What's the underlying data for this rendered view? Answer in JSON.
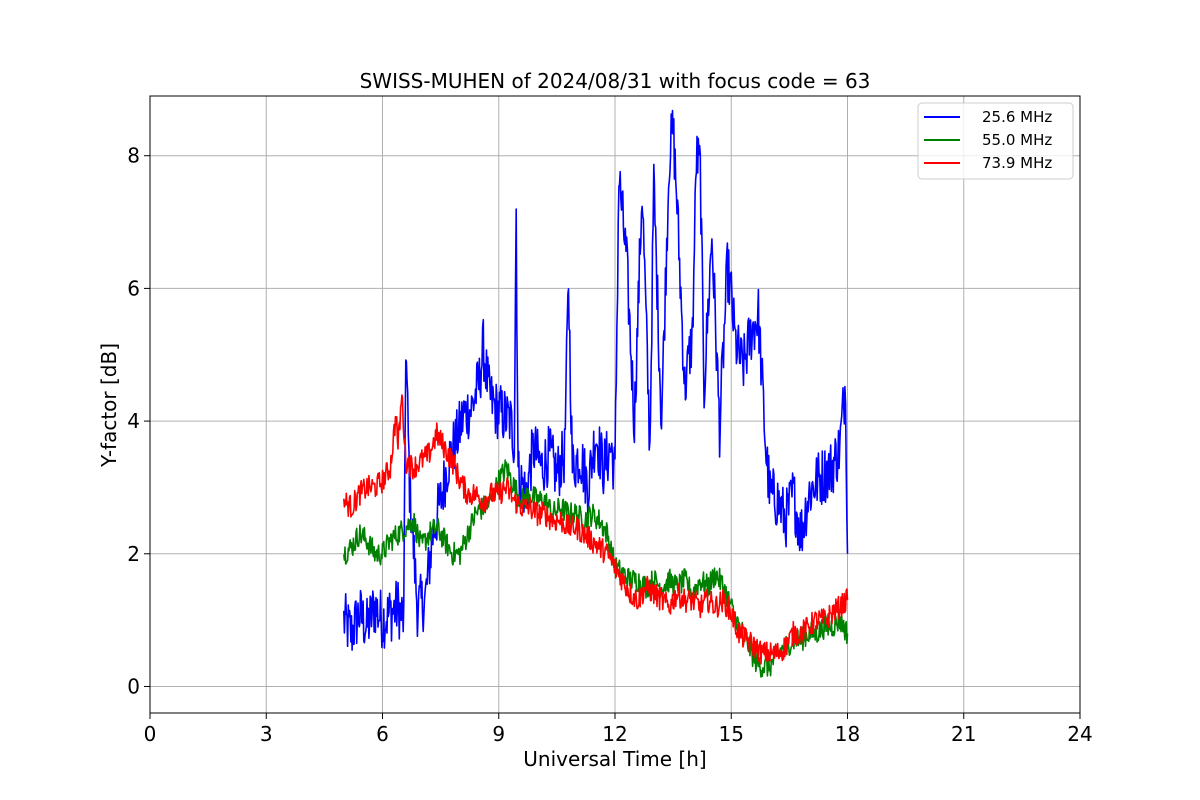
{
  "chart_data": {
    "type": "line",
    "title": "SWISS-MUHEN of 2024/08/31 with focus code = 63",
    "xlabel": "Universal Time [h]",
    "ylabel": "Y-factor [dB]",
    "xlim": [
      0,
      24
    ],
    "ylim": [
      -0.4,
      8.9
    ],
    "xticks": [
      0,
      3,
      6,
      9,
      12,
      15,
      18,
      21,
      24
    ],
    "yticks": [
      0,
      2,
      4,
      6,
      8
    ],
    "grid": true,
    "legend_position": "top-right",
    "series": [
      {
        "name": "25.6 MHz",
        "color": "#0000ff",
        "x": [
          5.0,
          5.2,
          5.4,
          5.6,
          5.8,
          6.0,
          6.2,
          6.4,
          6.55,
          6.6,
          6.7,
          6.9,
          7.1,
          7.3,
          7.5,
          7.7,
          7.9,
          8.1,
          8.3,
          8.5,
          8.6,
          8.75,
          8.9,
          9.1,
          9.3,
          9.4,
          9.45,
          9.5,
          9.7,
          9.9,
          10.1,
          10.3,
          10.5,
          10.7,
          10.8,
          10.9,
          11.1,
          11.3,
          11.5,
          11.7,
          11.9,
          12.0,
          12.1,
          12.3,
          12.5,
          12.7,
          12.9,
          13.0,
          13.2,
          13.4,
          13.5,
          13.6,
          13.8,
          14.0,
          14.1,
          14.2,
          14.3,
          14.5,
          14.7,
          14.9,
          15.0,
          15.1,
          15.3,
          15.5,
          15.7,
          15.9,
          16.0,
          16.2,
          16.4,
          16.6,
          16.8,
          17.0,
          17.2,
          17.4,
          17.6,
          17.8,
          17.95,
          18.0
        ],
        "values": [
          1.0,
          0.8,
          1.1,
          0.9,
          1.2,
          1.0,
          1.1,
          1.2,
          1.0,
          5.2,
          3.0,
          1.2,
          1.3,
          2.3,
          2.8,
          3.4,
          3.7,
          4.1,
          4.2,
          4.6,
          5.1,
          4.4,
          4.2,
          4.1,
          4.0,
          3.7,
          7.2,
          3.2,
          2.9,
          3.6,
          3.3,
          3.5,
          3.2,
          3.5,
          6.1,
          3.3,
          3.5,
          3.0,
          3.8,
          3.3,
          3.6,
          3.2,
          7.7,
          6.4,
          4.0,
          7.5,
          3.6,
          7.6,
          4.0,
          8.0,
          8.4,
          7.3,
          4.5,
          5.3,
          8.0,
          7.8,
          4.5,
          6.8,
          3.9,
          6.3,
          5.9,
          5.2,
          4.8,
          5.3,
          5.6,
          3.5,
          2.9,
          2.8,
          2.5,
          2.9,
          2.3,
          2.9,
          3.1,
          3.2,
          3.3,
          3.6,
          4.6,
          2.0
        ]
      },
      {
        "name": "55.0 MHz",
        "color": "#008000",
        "x": [
          5.0,
          5.2,
          5.4,
          5.6,
          5.8,
          6.0,
          6.2,
          6.4,
          6.6,
          6.8,
          7.0,
          7.2,
          7.4,
          7.6,
          7.8,
          8.0,
          8.2,
          8.4,
          8.6,
          8.8,
          9.0,
          9.2,
          9.4,
          9.6,
          9.8,
          10.0,
          10.2,
          10.4,
          10.6,
          10.8,
          11.0,
          11.2,
          11.4,
          11.6,
          11.8,
          12.0,
          12.2,
          12.4,
          12.6,
          12.8,
          13.0,
          13.2,
          13.4,
          13.6,
          13.8,
          14.0,
          14.2,
          14.4,
          14.6,
          14.8,
          15.0,
          15.2,
          15.4,
          15.6,
          15.8,
          16.0,
          16.2,
          16.4,
          16.6,
          16.8,
          17.0,
          17.2,
          17.4,
          17.6,
          17.8,
          18.0
        ],
        "values": [
          2.0,
          2.1,
          2.3,
          2.2,
          2.0,
          2.0,
          2.2,
          2.3,
          2.4,
          2.5,
          2.1,
          2.3,
          2.4,
          2.2,
          2.0,
          2.0,
          2.3,
          2.6,
          2.7,
          2.8,
          3.1,
          3.3,
          3.0,
          2.8,
          2.9,
          2.8,
          2.8,
          2.6,
          2.7,
          2.6,
          2.6,
          2.5,
          2.6,
          2.5,
          2.3,
          1.8,
          1.7,
          1.6,
          1.6,
          1.5,
          1.6,
          1.5,
          1.6,
          1.5,
          1.6,
          1.4,
          1.6,
          1.5,
          1.7,
          1.5,
          1.2,
          0.9,
          0.7,
          0.4,
          0.3,
          0.3,
          0.5,
          0.6,
          0.7,
          0.7,
          0.8,
          0.8,
          0.9,
          0.9,
          1.0,
          0.8
        ]
      },
      {
        "name": "73.9 MHz",
        "color": "#ff0000",
        "x": [
          5.0,
          5.2,
          5.4,
          5.6,
          5.8,
          6.0,
          6.2,
          6.35,
          6.4,
          6.5,
          6.6,
          6.8,
          7.0,
          7.2,
          7.4,
          7.6,
          7.8,
          8.0,
          8.2,
          8.4,
          8.6,
          8.8,
          9.0,
          9.2,
          9.4,
          9.6,
          9.8,
          10.0,
          10.2,
          10.4,
          10.6,
          10.8,
          11.0,
          11.2,
          11.4,
          11.6,
          11.8,
          12.0,
          12.2,
          12.4,
          12.6,
          12.8,
          13.0,
          13.2,
          13.4,
          13.6,
          13.8,
          14.0,
          14.2,
          14.4,
          14.6,
          14.8,
          15.0,
          15.2,
          15.4,
          15.6,
          15.8,
          16.0,
          16.2,
          16.4,
          16.6,
          16.8,
          17.0,
          17.2,
          17.4,
          17.6,
          17.8,
          18.0
        ],
        "values": [
          2.8,
          2.7,
          2.9,
          3.0,
          3.0,
          3.1,
          3.3,
          4.1,
          3.6,
          4.4,
          3.4,
          3.3,
          3.4,
          3.5,
          3.8,
          3.6,
          3.4,
          3.1,
          2.9,
          2.9,
          2.8,
          2.9,
          2.9,
          3.0,
          2.8,
          2.7,
          2.7,
          2.6,
          2.6,
          2.5,
          2.5,
          2.4,
          2.4,
          2.3,
          2.2,
          2.1,
          2.0,
          1.8,
          1.6,
          1.4,
          1.3,
          1.5,
          1.4,
          1.3,
          1.2,
          1.4,
          1.3,
          1.3,
          1.2,
          1.3,
          1.2,
          1.3,
          1.1,
          0.8,
          0.7,
          0.6,
          0.5,
          0.5,
          0.5,
          0.6,
          0.8,
          0.8,
          0.9,
          1.0,
          1.0,
          1.1,
          1.2,
          1.3
        ]
      }
    ]
  }
}
